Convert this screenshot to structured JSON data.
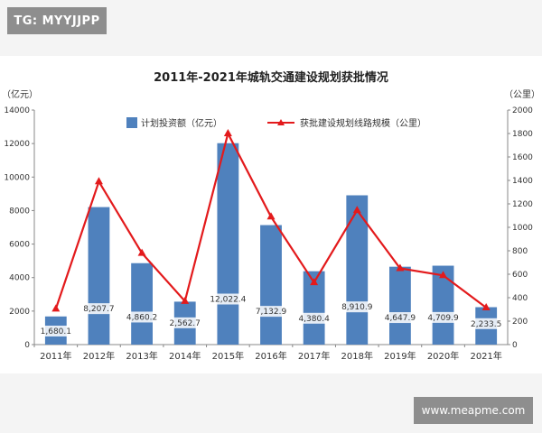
{
  "watermarks": {
    "top": "TG: MYYJJPP",
    "bottom": "www.meapme.com"
  },
  "colors": {
    "bar": "#4f81bd",
    "line": "#e31a1c",
    "axis": "#888888",
    "text": "#333333"
  },
  "chart_data": {
    "type": "bar",
    "title": "2011年-2021年城轨交通建设规划获批情况",
    "ylabel": "（亿元）",
    "y2label": "（公里）",
    "categories": [
      "2011年",
      "2012年",
      "2013年",
      "2014年",
      "2015年",
      "2016年",
      "2017年",
      "2018年",
      "2019年",
      "2020年",
      "2021年"
    ],
    "ylim": [
      0,
      14000
    ],
    "yticks": [
      0,
      2000,
      4000,
      6000,
      8000,
      10000,
      12000,
      14000
    ],
    "y2lim": [
      0,
      2000
    ],
    "y2ticks": [
      0,
      200,
      400,
      600,
      800,
      1000,
      1200,
      1400,
      1600,
      1800,
      2000
    ],
    "grid": false,
    "legend_position": "top",
    "series": [
      {
        "name": "计划投资额（亿元）",
        "type": "bar",
        "axis": "left",
        "values": [
          1680.1,
          8207.7,
          4860.2,
          2562.7,
          12022.4,
          7132.9,
          4380.4,
          8910.9,
          4647.9,
          4709.9,
          2233.5
        ],
        "data_labels": [
          "1,680.1",
          "8,207.7",
          "4,860.2",
          "2,562.7",
          "12,022.4",
          "7,132.9",
          "4,380.4",
          "8,910.9",
          "4,647.9",
          "4,709.9",
          "2,233.5"
        ]
      },
      {
        "name": "获批建设规划线路规模（公里）",
        "type": "line",
        "axis": "right",
        "values": [
          305,
          1390,
          780,
          370,
          1800,
          1090,
          530,
          1145,
          650,
          590,
          315
        ]
      }
    ]
  }
}
